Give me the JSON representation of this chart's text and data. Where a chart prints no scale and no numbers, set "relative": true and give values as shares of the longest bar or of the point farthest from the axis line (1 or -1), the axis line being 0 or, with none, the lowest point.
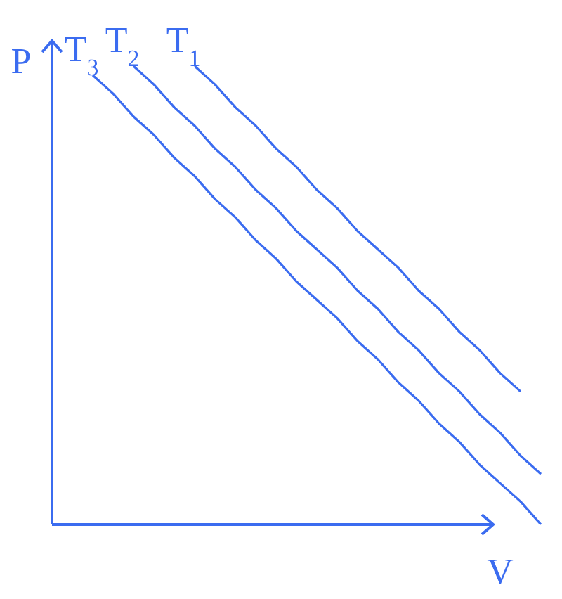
{
  "chart_data": {
    "type": "line",
    "relative": true,
    "xlabel": "V",
    "ylabel": "P",
    "categories": [
      null,
      null,
      null,
      null,
      null,
      null,
      null,
      null,
      null,
      null,
      null,
      null,
      null,
      null,
      null,
      null,
      null,
      null,
      null,
      null,
      null,
      null,
      null,
      null,
      null
    ],
    "series": [
      {
        "name": "T$_{3}$",
        "color": "#3b6cf0",
        "values": [
          null,
          null,
          0.98,
          0.94,
          0.89,
          0.85,
          0.8,
          0.76,
          0.71,
          0.67,
          0.62,
          0.58,
          0.53,
          0.49,
          0.45,
          0.4,
          0.36,
          0.31,
          0.27,
          0.22,
          0.18,
          0.13,
          0.09,
          0.05,
          0.0
        ]
      },
      {
        "name": "T$_{2}$",
        "color": "#3b6cf0",
        "values": [
          null,
          null,
          null,
          null,
          1.0,
          0.96,
          0.91,
          0.87,
          0.82,
          0.78,
          0.73,
          0.69,
          0.64,
          0.6,
          0.56,
          0.51,
          0.47,
          0.42,
          0.38,
          0.33,
          0.29,
          0.24,
          0.2,
          0.15,
          0.11
        ]
      },
      {
        "name": "T$_{1}$",
        "color": "#3b6cf0",
        "values": [
          null,
          null,
          null,
          null,
          null,
          null,
          null,
          1.0,
          0.96,
          0.91,
          0.87,
          0.82,
          0.78,
          0.73,
          0.69,
          0.64,
          0.6,
          0.56,
          0.51,
          0.47,
          0.42,
          0.38,
          0.33,
          0.29,
          null
        ]
      }
    ]
  }
}
